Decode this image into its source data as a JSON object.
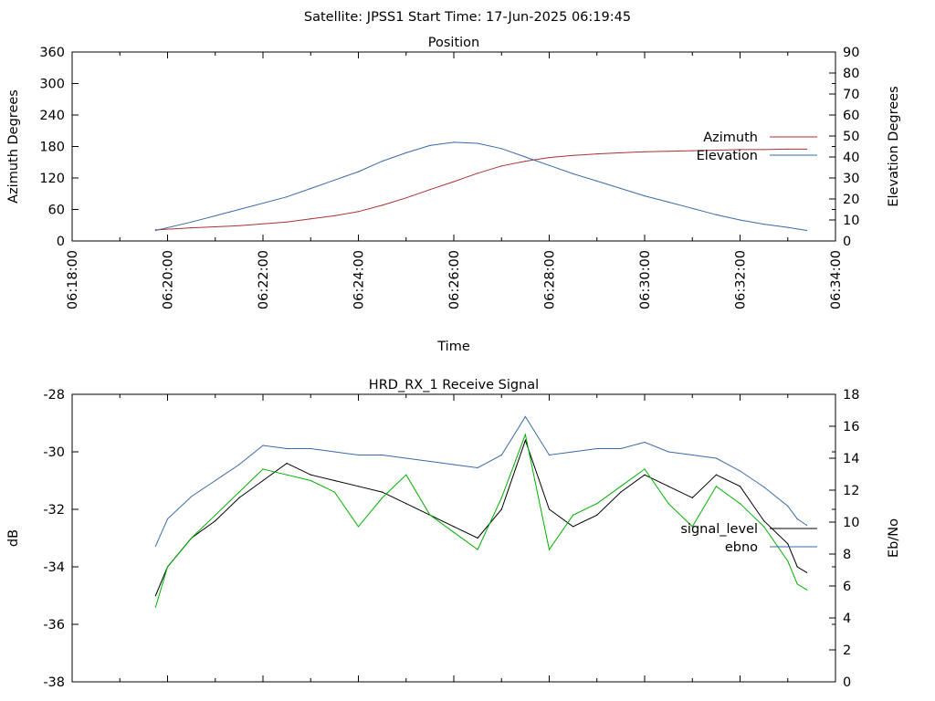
{
  "header": {
    "title": "Satellite: JPSS1    Start Time: 17-Jun-2025 06:19:45"
  },
  "colors": {
    "azimuth": "#a83232",
    "elevation": "#3a6aa8",
    "signal_level": "#000000",
    "ebno": "#3a6aa8",
    "green_trace": "#00b000"
  },
  "chart_data": [
    {
      "type": "line",
      "title": "Position",
      "xlabel": "Time",
      "ylabel": "Azimuth Degrees",
      "y2label": "Elevation Degrees",
      "xlim": [
        0,
        16
      ],
      "ylim": [
        0,
        360
      ],
      "y2lim": [
        0,
        90
      ],
      "yticks": [
        0,
        60,
        120,
        180,
        240,
        300,
        360
      ],
      "y2ticks": [
        0,
        10,
        20,
        30,
        40,
        50,
        60,
        70,
        80,
        90
      ],
      "xtick_values": [
        0,
        2,
        4,
        6,
        8,
        10,
        12,
        14,
        16
      ],
      "xtick_labels": [
        "06:18:00",
        "06:20:00",
        "06:22:00",
        "06:24:00",
        "06:26:00",
        "06:28:00",
        "06:30:00",
        "06:32:00",
        "06:34:00"
      ],
      "legend_position": "right",
      "grid": false,
      "series": [
        {
          "name": "Azimuth",
          "axis": "left",
          "x": [
            1.75,
            2.5,
            3.5,
            4.5,
            5.0,
            5.5,
            6.0,
            6.5,
            7.0,
            7.5,
            8.0,
            8.5,
            9.0,
            9.5,
            10.0,
            10.5,
            11.0,
            11.5,
            12.0,
            12.5,
            13.0,
            13.5,
            14.0,
            14.5,
            15.0,
            15.4
          ],
          "values": [
            21,
            25,
            29,
            36,
            42,
            48,
            56,
            68,
            82,
            98,
            113,
            129,
            143,
            152,
            159,
            163,
            166,
            168,
            170,
            171,
            172,
            173,
            174,
            174,
            175,
            175
          ]
        },
        {
          "name": "Elevation",
          "axis": "right",
          "x": [
            1.75,
            2.5,
            3.5,
            4.5,
            5.0,
            5.5,
            6.0,
            6.5,
            7.0,
            7.5,
            8.0,
            8.5,
            9.0,
            9.5,
            10.0,
            10.5,
            11.0,
            11.5,
            12.0,
            12.5,
            13.0,
            13.5,
            14.0,
            14.5,
            15.0,
            15.4
          ],
          "values": [
            5,
            9,
            15,
            21,
            25,
            29,
            33,
            38,
            42,
            45.5,
            47,
            46.5,
            44,
            40,
            36,
            32,
            28.5,
            25,
            21.5,
            18.5,
            15.5,
            12.5,
            10,
            8,
            6.5,
            5
          ]
        }
      ]
    },
    {
      "type": "line",
      "title": "HRD_RX_1 Receive Signal",
      "ylabel": "dB",
      "y2label": "Eb/No",
      "xlim": [
        0,
        16
      ],
      "ylim": [
        -38,
        -28
      ],
      "y2lim": [
        0,
        18
      ],
      "yticks": [
        -38,
        -36,
        -34,
        -32,
        -30,
        -28
      ],
      "y2ticks": [
        0,
        2,
        4,
        6,
        8,
        10,
        12,
        14,
        16,
        18
      ],
      "legend_position": "right",
      "grid": false,
      "series": [
        {
          "name": "signal_level",
          "axis": "left",
          "x": [
            1.75,
            2.0,
            2.5,
            3.0,
            3.5,
            4.0,
            4.5,
            5.0,
            5.5,
            6.0,
            6.5,
            7.0,
            7.5,
            8.0,
            8.5,
            9.0,
            9.5,
            10.0,
            10.5,
            11.0,
            11.5,
            12.0,
            12.5,
            13.0,
            13.5,
            14.0,
            14.5,
            15.0,
            15.2,
            15.4
          ],
          "values": [
            -35,
            -34,
            -33,
            -32.4,
            -31.6,
            -31,
            -30.4,
            -30.8,
            -31,
            -31.2,
            -31.4,
            -31.8,
            -32.2,
            -32.6,
            -33,
            -32,
            -29.6,
            -32,
            -32.6,
            -32.2,
            -31.4,
            -30.8,
            -31.2,
            -31.6,
            -30.8,
            -31.2,
            -32.4,
            -33.2,
            -34,
            -34.2
          ]
        },
        {
          "name": "ebno",
          "axis": "right",
          "x": [
            1.75,
            2.0,
            2.5,
            3.0,
            3.5,
            4.0,
            4.5,
            5.0,
            5.5,
            6.0,
            6.5,
            7.0,
            7.5,
            8.0,
            8.5,
            9.0,
            9.5,
            10.0,
            10.5,
            11.0,
            11.5,
            12.0,
            12.5,
            13.0,
            13.5,
            14.0,
            14.5,
            15.0,
            15.2,
            15.4
          ],
          "values": [
            8.5,
            10.2,
            11.6,
            12.6,
            13.6,
            14.8,
            14.6,
            14.6,
            14.4,
            14.2,
            14.2,
            14,
            13.8,
            13.6,
            13.4,
            14.2,
            16.6,
            14.2,
            14.4,
            14.6,
            14.6,
            15,
            14.4,
            14.2,
            14,
            13.2,
            12.2,
            11,
            10.2,
            9.8
          ]
        },
        {
          "name": "",
          "axis": "left",
          "x": [
            1.75,
            2.0,
            2.5,
            3.0,
            3.5,
            4.0,
            4.5,
            5.0,
            5.5,
            6.0,
            6.5,
            7.0,
            7.5,
            8.0,
            8.5,
            9.0,
            9.5,
            10.0,
            10.5,
            11.0,
            11.5,
            12.0,
            12.5,
            13.0,
            13.5,
            14.0,
            14.5,
            15.0,
            15.2,
            15.4
          ],
          "values": [
            -35.4,
            -34,
            -33,
            -32.2,
            -31.4,
            -30.6,
            -30.8,
            -31,
            -31.4,
            -32.6,
            -31.6,
            -30.8,
            -32.2,
            -32.8,
            -33.4,
            -31.6,
            -29.4,
            -33.4,
            -32.2,
            -31.8,
            -31.2,
            -30.6,
            -31.8,
            -32.6,
            -31.2,
            -31.8,
            -32.6,
            -33.8,
            -34.6,
            -34.8
          ]
        }
      ]
    }
  ]
}
